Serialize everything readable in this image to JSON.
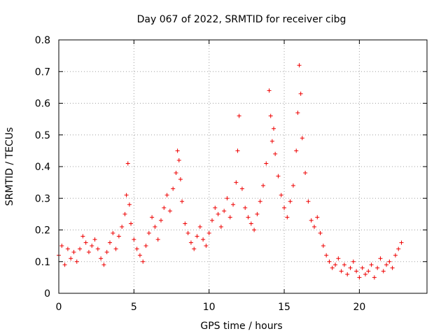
{
  "chart_data": {
    "type": "scatter",
    "title": "Day 067 of 2022, SRMTID for receiver cibg",
    "xlabel": "GPS time / hours",
    "ylabel": "SRMTID / TECUs",
    "xlim": [
      0,
      24.5
    ],
    "ylim": [
      0,
      0.8
    ],
    "x_ticks": [
      0,
      5,
      10,
      15,
      20
    ],
    "x_tick_labels": [
      "0",
      "5",
      "10",
      "15",
      "20"
    ],
    "y_ticks": [
      0,
      0.1,
      0.2,
      0.3,
      0.4,
      0.5,
      0.6,
      0.7,
      0.8
    ],
    "y_tick_labels": [
      "0",
      "0.1",
      "0.2",
      "0.3",
      "0.4",
      "0.5",
      "0.6",
      "0.7",
      "0.8"
    ],
    "grid": true,
    "marker": "plus",
    "color": "#ee0000",
    "series": [
      {
        "name": "SRMTID",
        "x": [
          0.0,
          0.2,
          0.4,
          0.6,
          0.8,
          1.0,
          1.2,
          1.4,
          1.6,
          1.8,
          2.0,
          2.2,
          2.4,
          2.6,
          2.8,
          3.0,
          3.2,
          3.4,
          3.6,
          3.8,
          4.0,
          4.2,
          4.4,
          4.5,
          4.6,
          4.7,
          4.8,
          5.0,
          5.2,
          5.4,
          5.6,
          5.8,
          6.0,
          6.2,
          6.4,
          6.6,
          6.8,
          7.0,
          7.2,
          7.4,
          7.6,
          7.8,
          7.9,
          8.0,
          8.1,
          8.2,
          8.4,
          8.6,
          8.8,
          9.0,
          9.2,
          9.4,
          9.6,
          9.8,
          10.0,
          10.2,
          10.4,
          10.6,
          10.8,
          11.0,
          11.2,
          11.4,
          11.6,
          11.8,
          11.9,
          12.0,
          12.2,
          12.4,
          12.6,
          12.8,
          13.0,
          13.2,
          13.4,
          13.6,
          13.8,
          14.0,
          14.1,
          14.2,
          14.3,
          14.4,
          14.6,
          14.8,
          15.0,
          15.2,
          15.4,
          15.6,
          15.8,
          15.9,
          16.0,
          16.1,
          16.2,
          16.4,
          16.6,
          16.8,
          17.0,
          17.2,
          17.4,
          17.6,
          17.8,
          18.0,
          18.2,
          18.4,
          18.6,
          18.8,
          19.0,
          19.2,
          19.4,
          19.6,
          19.8,
          20.0,
          20.2,
          20.4,
          20.6,
          20.8,
          21.0,
          21.2,
          21.4,
          21.6,
          21.8,
          22.0,
          22.2,
          22.4,
          22.6,
          22.8
        ],
        "y": [
          0.12,
          0.15,
          0.09,
          0.14,
          0.11,
          0.13,
          0.1,
          0.14,
          0.18,
          0.16,
          0.13,
          0.15,
          0.17,
          0.14,
          0.11,
          0.09,
          0.13,
          0.16,
          0.19,
          0.14,
          0.18,
          0.21,
          0.25,
          0.31,
          0.41,
          0.28,
          0.22,
          0.17,
          0.14,
          0.12,
          0.1,
          0.15,
          0.19,
          0.24,
          0.21,
          0.17,
          0.23,
          0.27,
          0.31,
          0.26,
          0.33,
          0.38,
          0.45,
          0.42,
          0.36,
          0.29,
          0.22,
          0.19,
          0.16,
          0.14,
          0.18,
          0.21,
          0.17,
          0.15,
          0.19,
          0.23,
          0.27,
          0.25,
          0.21,
          0.26,
          0.3,
          0.24,
          0.28,
          0.35,
          0.45,
          0.56,
          0.33,
          0.27,
          0.24,
          0.22,
          0.2,
          0.25,
          0.29,
          0.34,
          0.41,
          0.64,
          0.56,
          0.48,
          0.52,
          0.44,
          0.37,
          0.31,
          0.27,
          0.24,
          0.29,
          0.34,
          0.45,
          0.57,
          0.72,
          0.63,
          0.49,
          0.38,
          0.29,
          0.23,
          0.21,
          0.24,
          0.19,
          0.15,
          0.12,
          0.1,
          0.08,
          0.09,
          0.11,
          0.07,
          0.09,
          0.06,
          0.08,
          0.1,
          0.07,
          0.05,
          0.08,
          0.06,
          0.07,
          0.09,
          0.05,
          0.08,
          0.11,
          0.07,
          0.09,
          0.1,
          0.08,
          0.12,
          0.14,
          0.16
        ]
      }
    ]
  }
}
